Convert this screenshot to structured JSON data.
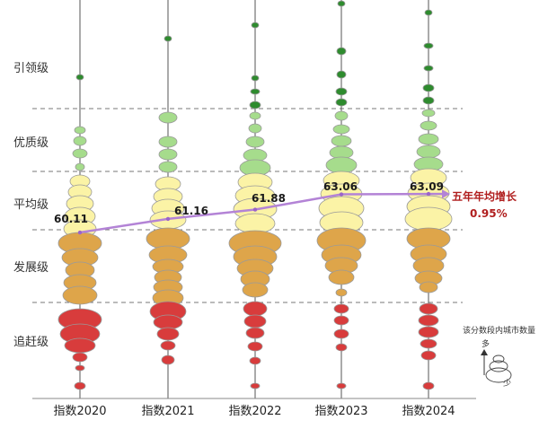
{
  "chart_data": {
    "type": "bubble-column",
    "tiers": [
      {
        "label": "引领级",
        "color": "#2e8b2e"
      },
      {
        "label": "优质级",
        "color": "#a6dc8c"
      },
      {
        "label": "平均级",
        "color": "#fbf3a6"
      },
      {
        "label": "发展级",
        "color": "#dea54a"
      },
      {
        "label": "追赶级",
        "color": "#d83c3c"
      }
    ],
    "categories": [
      "指数2020",
      "指数2021",
      "指数2022",
      "指数2023",
      "指数2024"
    ],
    "averages": [
      "60.11",
      "61.16",
      "61.88",
      "63.06",
      "63.09"
    ],
    "average_values": [
      60.11,
      61.16,
      61.88,
      63.06,
      63.09
    ],
    "growth": {
      "title": "五年年均增长",
      "value": "0.95%"
    },
    "legend": {
      "title": "该分数段内城市数量",
      "more": "多",
      "less": "少"
    }
  }
}
